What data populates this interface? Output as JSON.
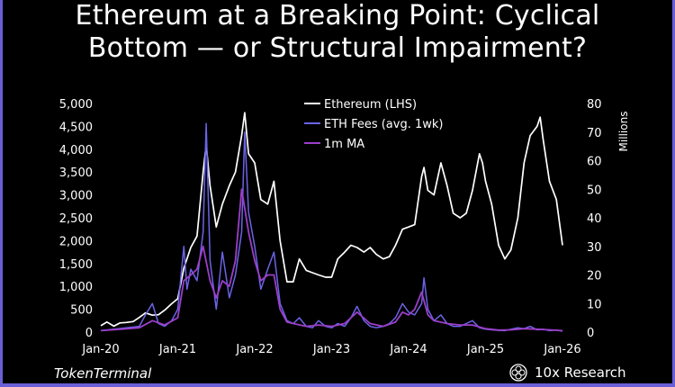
{
  "title_line1": "Ethereum at a Breaking Point: Cyclical",
  "title_line2": "Bottom — or Structural Impairment?",
  "source": "TokenTerminal",
  "brand": "10x Research",
  "colors": {
    "background": "#000000",
    "frame": "#6b5fd8",
    "eth_price": "#ffffff",
    "eth_fees": "#6b63e6",
    "fees_ma": "#9b3fc9"
  },
  "chart_data": {
    "type": "line",
    "title": "Ethereum at a Breaking Point: Cyclical Bottom — or Structural Impairment?",
    "x_ticks": [
      "Jan-20",
      "Jan-21",
      "Jan-22",
      "Jan-23",
      "Jan-24",
      "Jan-25",
      "Jan-26"
    ],
    "x_range": [
      2020.0,
      2026.0
    ],
    "y_left": {
      "label": "",
      "ticks": [
        "0",
        "500",
        "1,000",
        "1,500",
        "2,000",
        "2,500",
        "3,000",
        "3,500",
        "4,000",
        "4,500",
        "5,000"
      ],
      "range": [
        0,
        5000
      ]
    },
    "y_right": {
      "label": "Millions",
      "ticks": [
        "0",
        "10",
        "20",
        "30",
        "40",
        "50",
        "60",
        "70",
        "80"
      ],
      "range": [
        0,
        80
      ]
    },
    "legend": [
      "Ethereum (LHS)",
      "ETH Fees (avg. 1wk)",
      "1m MA"
    ],
    "legend_position": "top-center",
    "series": [
      {
        "name": "Ethereum (LHS)",
        "axis": "left",
        "x": [
          2020.0,
          2020.08,
          2020.17,
          2020.25,
          2020.33,
          2020.42,
          2020.5,
          2020.58,
          2020.67,
          2020.75,
          2020.83,
          2020.92,
          2021.0,
          2021.08,
          2021.17,
          2021.25,
          2021.33,
          2021.37,
          2021.42,
          2021.5,
          2021.58,
          2021.67,
          2021.75,
          2021.83,
          2021.87,
          2021.92,
          2022.0,
          2022.08,
          2022.17,
          2022.25,
          2022.33,
          2022.42,
          2022.5,
          2022.58,
          2022.67,
          2022.75,
          2022.83,
          2022.92,
          2023.0,
          2023.08,
          2023.17,
          2023.25,
          2023.33,
          2023.42,
          2023.5,
          2023.58,
          2023.67,
          2023.75,
          2023.83,
          2023.92,
          2024.0,
          2024.08,
          2024.17,
          2024.2,
          2024.25,
          2024.33,
          2024.42,
          2024.5,
          2024.58,
          2024.67,
          2024.75,
          2024.83,
          2024.92,
          2024.96,
          2025.0,
          2025.08,
          2025.17,
          2025.25,
          2025.33,
          2025.42,
          2025.5,
          2025.58,
          2025.67,
          2025.71,
          2025.75,
          2025.83,
          2025.92,
          2026.0
        ],
        "values": [
          140,
          220,
          130,
          200,
          210,
          230,
          320,
          420,
          370,
          380,
          480,
          620,
          730,
          1400,
          1850,
          2100,
          3500,
          4100,
          3200,
          2300,
          2800,
          3200,
          3500,
          4300,
          4800,
          3900,
          3700,
          2900,
          2800,
          3300,
          2000,
          1100,
          1100,
          1600,
          1350,
          1300,
          1250,
          1200,
          1200,
          1600,
          1750,
          1900,
          1850,
          1750,
          1850,
          1700,
          1600,
          1650,
          1900,
          2250,
          2300,
          2350,
          3400,
          3600,
          3100,
          3000,
          3700,
          3200,
          2600,
          2500,
          2600,
          3100,
          3900,
          3700,
          3300,
          2800,
          1900,
          1600,
          1800,
          2500,
          3700,
          4300,
          4500,
          4700,
          4200,
          3300,
          2900,
          1900
        ]
      },
      {
        "name": "ETH Fees (avg. 1wk)",
        "axis": "right",
        "x": [
          2020.0,
          2020.17,
          2020.33,
          2020.5,
          2020.58,
          2020.67,
          2020.75,
          2020.83,
          2020.92,
          2021.0,
          2021.08,
          2021.12,
          2021.17,
          2021.25,
          2021.33,
          2021.37,
          2021.42,
          2021.5,
          2021.58,
          2021.67,
          2021.75,
          2021.83,
          2021.87,
          2021.92,
          2022.0,
          2022.08,
          2022.17,
          2022.25,
          2022.33,
          2022.42,
          2022.5,
          2022.58,
          2022.67,
          2022.75,
          2022.83,
          2022.92,
          2023.0,
          2023.08,
          2023.17,
          2023.25,
          2023.33,
          2023.42,
          2023.5,
          2023.58,
          2023.67,
          2023.75,
          2023.83,
          2023.92,
          2024.0,
          2024.08,
          2024.17,
          2024.2,
          2024.25,
          2024.33,
          2024.42,
          2024.5,
          2024.58,
          2024.67,
          2024.75,
          2024.83,
          2024.92,
          2025.0,
          2025.08,
          2025.17,
          2025.25,
          2025.33,
          2025.42,
          2025.5,
          2025.58,
          2025.67,
          2025.75,
          2025.83,
          2025.92,
          2026.0
        ],
        "values": [
          0.5,
          1,
          1.5,
          2,
          6,
          10,
          3,
          2,
          4,
          8,
          30,
          15,
          22,
          18,
          35,
          73,
          25,
          8,
          28,
          12,
          20,
          35,
          70,
          42,
          30,
          15,
          22,
          28,
          10,
          4,
          3,
          5,
          2,
          1.5,
          4,
          2,
          1.5,
          3,
          2,
          5,
          9,
          4,
          2,
          1.5,
          2,
          3,
          5,
          10,
          7,
          6,
          10,
          19,
          8,
          4,
          6,
          3,
          2,
          2,
          3,
          4,
          1.5,
          1,
          0.8,
          0.6,
          0.5,
          1,
          1.5,
          1.2,
          2,
          0.8,
          1,
          0.5,
          0.7,
          0.3
        ]
      },
      {
        "name": "1m MA",
        "axis": "right",
        "x": [
          2020.0,
          2020.25,
          2020.5,
          2020.67,
          2020.83,
          2021.0,
          2021.08,
          2021.17,
          2021.25,
          2021.33,
          2021.42,
          2021.5,
          2021.58,
          2021.67,
          2021.75,
          2021.83,
          2021.92,
          2022.0,
          2022.08,
          2022.17,
          2022.25,
          2022.33,
          2022.42,
          2022.5,
          2022.67,
          2022.83,
          2023.0,
          2023.17,
          2023.25,
          2023.33,
          2023.5,
          2023.67,
          2023.83,
          2023.92,
          2024.0,
          2024.08,
          2024.17,
          2024.25,
          2024.33,
          2024.5,
          2024.67,
          2024.83,
          2025.0,
          2025.17,
          2025.33,
          2025.5,
          2025.67,
          2025.83,
          2026.0
        ],
        "values": [
          0.5,
          1,
          1.5,
          4,
          2.5,
          5,
          18,
          20,
          22,
          30,
          18,
          12,
          18,
          16,
          25,
          50,
          35,
          25,
          18,
          20,
          20,
          8,
          3.5,
          3,
          2,
          2.5,
          2,
          3,
          5,
          7,
          3,
          2,
          3.5,
          7,
          6,
          8,
          14,
          6,
          4,
          3,
          2.5,
          2.5,
          1.2,
          0.7,
          0.8,
          1.2,
          1,
          0.8,
          0.5
        ]
      }
    ]
  }
}
